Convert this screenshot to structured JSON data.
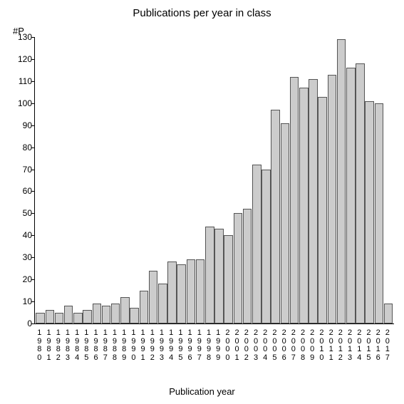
{
  "chart": {
    "type": "bar",
    "title": "Publications per year in class",
    "ylabel": "#P",
    "xlabel": "Publication year",
    "title_fontsize": 15,
    "label_fontsize": 13,
    "tick_fontsize": 12,
    "background_color": "#ffffff",
    "bar_fill": "#cccccc",
    "bar_border": "#555555",
    "axis_color": "#000000",
    "ylim": [
      0,
      130
    ],
    "ytick_step": 10,
    "bar_width": 0.95,
    "years": [
      "1980",
      "1981",
      "1982",
      "1983",
      "1984",
      "1985",
      "1986",
      "1987",
      "1988",
      "1989",
      "1990",
      "1991",
      "1992",
      "1993",
      "1994",
      "1995",
      "1996",
      "1997",
      "1998",
      "1999",
      "2000",
      "2001",
      "2002",
      "2003",
      "2004",
      "2005",
      "2006",
      "2007",
      "2008",
      "2009",
      "2010",
      "2011",
      "2012",
      "2013",
      "2014",
      "2015",
      "2016",
      "2017"
    ],
    "values": [
      5,
      6,
      5,
      8,
      5,
      6,
      9,
      8,
      9,
      12,
      7,
      15,
      24,
      18,
      28,
      27,
      29,
      29,
      44,
      43,
      40,
      50,
      52,
      72,
      70,
      97,
      91,
      112,
      107,
      111,
      103,
      113,
      129,
      116,
      118,
      101,
      100,
      9
    ]
  }
}
